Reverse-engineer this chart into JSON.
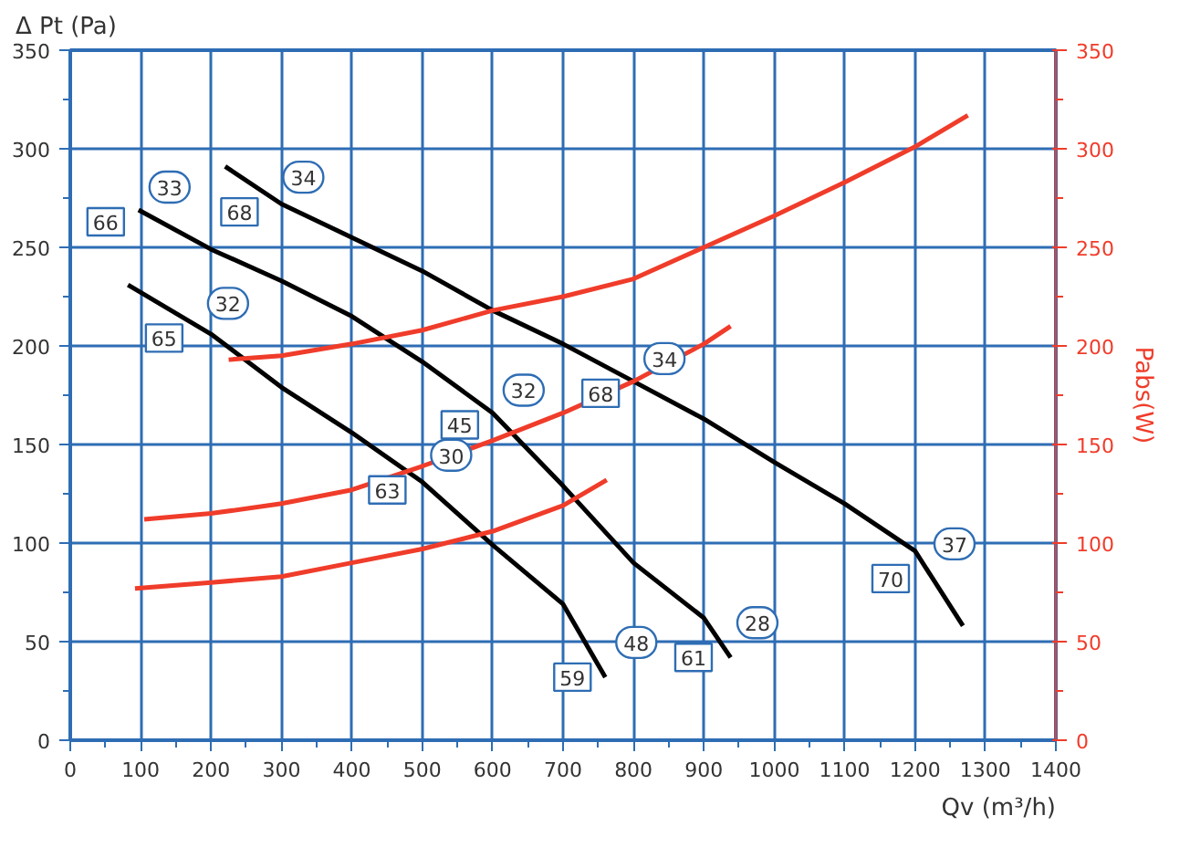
{
  "chart_data": {
    "type": "line",
    "xlabel": "Qv (m³/h)",
    "ylabel": "Δ Pt (Pa)",
    "y2label": "Pabs(W)",
    "xlim": [
      0,
      1400
    ],
    "xticks": [
      0,
      100,
      200,
      300,
      400,
      500,
      600,
      700,
      800,
      900,
      1000,
      1100,
      1200,
      1300,
      1400
    ],
    "ylim": [
      0,
      350
    ],
    "yticks": [
      0,
      50,
      100,
      150,
      200,
      250,
      300,
      350
    ],
    "y2lim": [
      0,
      350
    ],
    "y2ticks": [
      0,
      50,
      100,
      150,
      200,
      250,
      300,
      350
    ],
    "grid": true,
    "marker": "none",
    "line_style": "solid",
    "series": [
      {
        "color": "#000000",
        "x": [
          82,
          200,
          300,
          400,
          500,
          600,
          700,
          760
        ],
        "values": [
          231,
          206,
          179,
          156,
          131,
          99,
          69,
          32
        ]
      },
      {
        "color": "#000000",
        "x": [
          97,
          200,
          300,
          400,
          500,
          600,
          700,
          800,
          900,
          938
        ],
        "values": [
          269,
          249,
          233,
          215,
          192,
          166,
          129,
          90,
          62,
          42
        ]
      },
      {
        "color": "#000000",
        "x": [
          220,
          300,
          400,
          500,
          600,
          700,
          800,
          900,
          1000,
          1100,
          1200,
          1268
        ],
        "values": [
          291,
          272,
          255,
          238,
          218,
          201,
          182,
          163,
          141,
          120,
          96,
          58
        ]
      },
      {
        "color": "#f03c2a",
        "axis": "y2",
        "x": [
          92,
          200,
          300,
          400,
          500,
          600,
          700,
          762
        ],
        "values": [
          77,
          80,
          83,
          90,
          97,
          106,
          119,
          132
        ]
      },
      {
        "color": "#f03c2a",
        "axis": "y2",
        "x": [
          105,
          200,
          300,
          400,
          500,
          600,
          700,
          800,
          900,
          938
        ],
        "values": [
          112,
          115,
          120,
          127,
          139,
          152,
          166,
          182,
          201,
          210
        ]
      },
      {
        "color": "#f03c2a",
        "axis": "y2",
        "x": [
          225,
          300,
          400,
          500,
          600,
          700,
          800,
          900,
          1000,
          1100,
          1200,
          1275
        ],
        "values": [
          193,
          195,
          201,
          208,
          218,
          225,
          234,
          250,
          266,
          283,
          301,
          317
        ]
      }
    ],
    "annotations": [
      {
        "text": "66",
        "x": 97,
        "y": 269
      },
      {
        "text": "33",
        "x": 97,
        "y": 269
      },
      {
        "text": "68",
        "x": 287,
        "y": 274
      },
      {
        "text": "34",
        "x": 287,
        "y": 274
      },
      {
        "text": "65",
        "x": 180,
        "y": 210
      },
      {
        "text": "32",
        "x": 180,
        "y": 210
      },
      {
        "text": "45",
        "x": 600,
        "y": 166
      },
      {
        "text": "32",
        "x": 600,
        "y": 166
      },
      {
        "text": "63",
        "x": 497,
        "y": 133
      },
      {
        "text": "30",
        "x": 497,
        "y": 133
      },
      {
        "text": "68",
        "x": 800,
        "y": 182
      },
      {
        "text": "34",
        "x": 800,
        "y": 182
      },
      {
        "text": "59",
        "x": 760,
        "y": 38
      },
      {
        "text": "48",
        "x": 760,
        "y": 38
      },
      {
        "text": "61",
        "x": 932,
        "y": 48
      },
      {
        "text": "28",
        "x": 932,
        "y": 48
      },
      {
        "text": "70",
        "x": 1212,
        "y": 88
      },
      {
        "text": "37",
        "x": 1212,
        "y": 88
      }
    ]
  }
}
